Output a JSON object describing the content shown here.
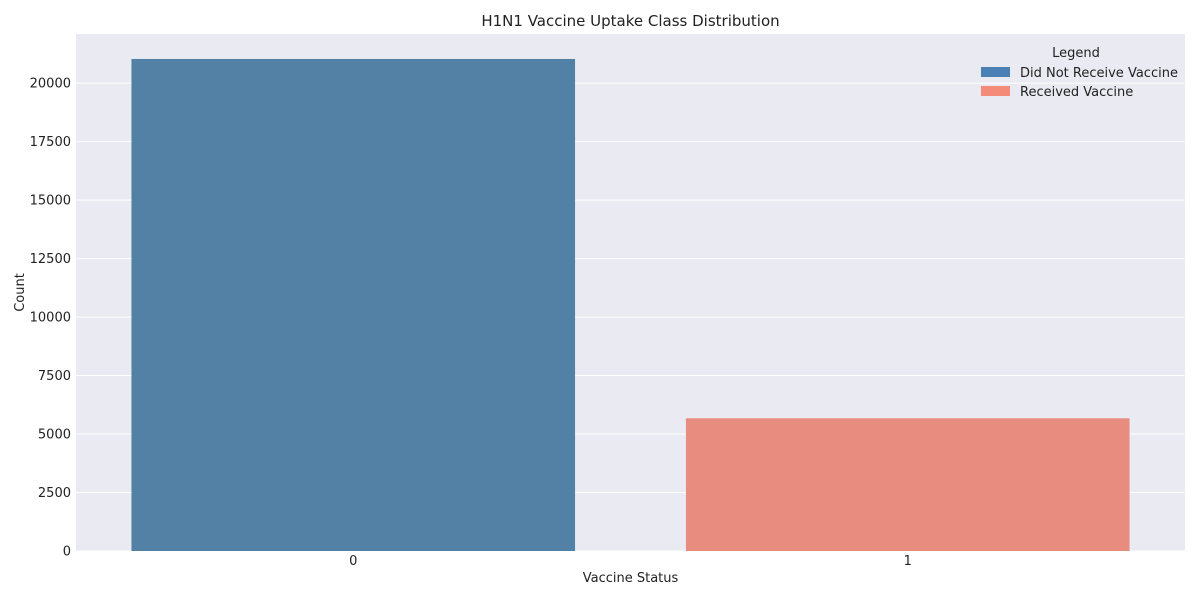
{
  "chart_data": {
    "type": "bar",
    "title": "H1N1 Vaccine Uptake Class Distribution",
    "xlabel": "Vaccine Status",
    "ylabel": "Count",
    "categories": [
      "0",
      "1"
    ],
    "values": [
      21033,
      5674
    ],
    "colors": [
      "#5381a6",
      "#e88c80"
    ],
    "ylim": [
      0,
      22100
    ],
    "yticks": [
      0,
      2500,
      5000,
      7500,
      10000,
      12500,
      15000,
      17500,
      20000
    ],
    "grid": true,
    "legend": {
      "title": "Legend",
      "placement": "top-right",
      "entries": [
        {
          "label": "Did Not Receive Vaccine",
          "color": "#4a80b5"
        },
        {
          "label": "Received Vaccine",
          "color": "#f38b78"
        }
      ]
    },
    "plot_background": "#eaeaf2"
  }
}
